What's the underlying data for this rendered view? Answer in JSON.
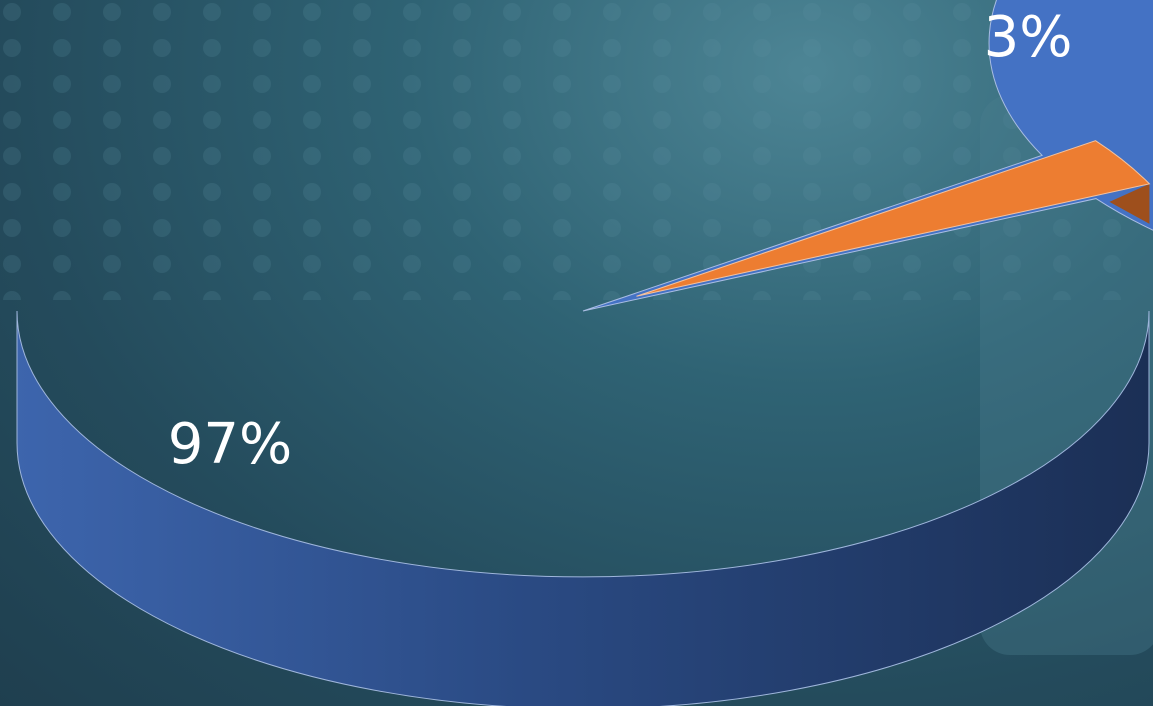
{
  "chart_data": {
    "type": "pie",
    "style": "3d",
    "slices": [
      {
        "label": "97%",
        "value": 97,
        "color": "#4472c4",
        "side_color": "#2b4f8f"
      },
      {
        "label": "3%",
        "value": 3,
        "color": "#ed7d31",
        "side_color": "#9e4f1c",
        "exploded": true
      }
    ],
    "data_labels": [
      "97%",
      "3%"
    ],
    "title": "",
    "legend": "none"
  },
  "colors": {
    "background": "#2b5566",
    "slice_main": "#4472c4",
    "slice_minor": "#ed7d31"
  }
}
